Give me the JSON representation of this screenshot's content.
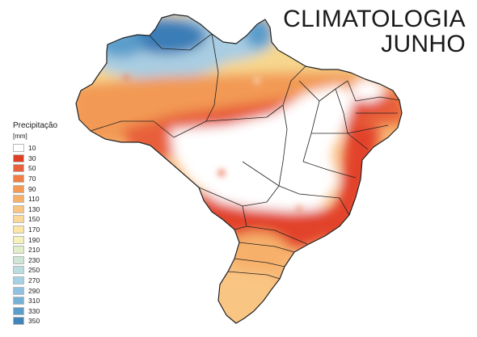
{
  "map": {
    "title_line1": "CLIMATOLOGIA",
    "title_line2": "JUNHO",
    "colors": {
      "dry": "#ffffff",
      "red": "#e2432a",
      "orange": "#f2894a",
      "light_orange": "#f9b877",
      "yellow": "#fae49c",
      "pale_blue": "#a9cde2",
      "blue": "#3b7db6",
      "dark_blue": "#2e6aa6",
      "border": "#222222"
    }
  },
  "legend": {
    "title": "Precipitação",
    "unit": "[mm]",
    "items": [
      {
        "label": "10",
        "color": "#ffffff"
      },
      {
        "label": "30",
        "color": "#de3f25"
      },
      {
        "label": "50",
        "color": "#e8613a"
      },
      {
        "label": "70",
        "color": "#f07e45"
      },
      {
        "label": "90",
        "color": "#f49a55"
      },
      {
        "label": "110",
        "color": "#f7b06a"
      },
      {
        "label": "130",
        "color": "#f9c583"
      },
      {
        "label": "150",
        "color": "#fbd898"
      },
      {
        "label": "170",
        "color": "#fbe6a8"
      },
      {
        "label": "190",
        "color": "#f6f0bb"
      },
      {
        "label": "210",
        "color": "#e2edc9"
      },
      {
        "label": "230",
        "color": "#cfe5d6"
      },
      {
        "label": "250",
        "color": "#bcdddf"
      },
      {
        "label": "270",
        "color": "#a5d1e5"
      },
      {
        "label": "290",
        "color": "#8ec2e0"
      },
      {
        "label": "310",
        "color": "#76b1d7"
      },
      {
        "label": "330",
        "color": "#5a9dcb"
      },
      {
        "label": "350",
        "color": "#3f84bb"
      }
    ]
  }
}
